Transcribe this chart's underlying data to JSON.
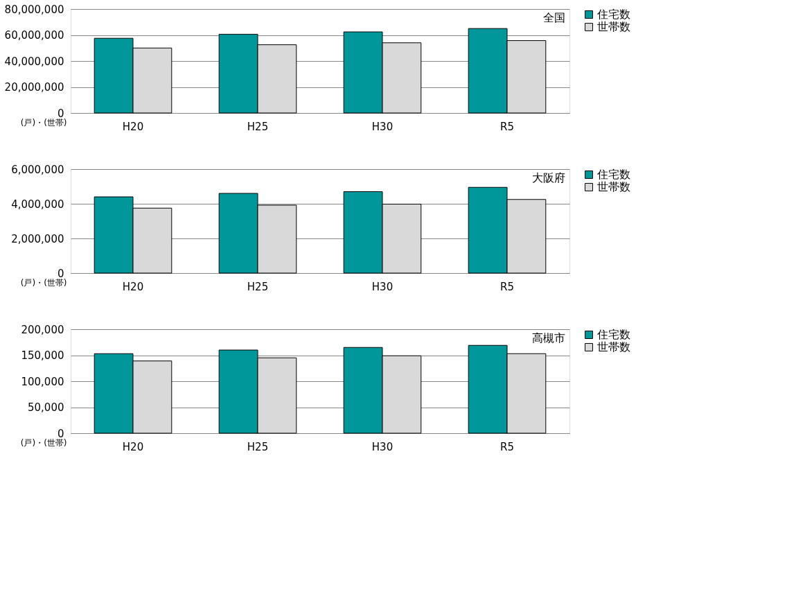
{
  "chart_data": [
    {
      "type": "bar",
      "title": "全国",
      "ylabel": "(戸)・(世帯)",
      "categories": [
        "H20",
        "H25",
        "H30",
        "R5"
      ],
      "series": [
        {
          "name": "住宅数",
          "color": "#00979b",
          "values": [
            57500000,
            60600000,
            62400000,
            65000000
          ]
        },
        {
          "name": "世帯数",
          "color": "#d9d9d9",
          "values": [
            50000000,
            52500000,
            54000000,
            55700000
          ]
        }
      ],
      "ylim": [
        0,
        80000000
      ],
      "yticks": [
        0,
        {
          "value": 20000000,
          "label": "20,000,000"
        },
        {
          "value": 40000000,
          "label": "40,000,000"
        },
        {
          "value": 60000000,
          "label": "60,000,000"
        },
        {
          "value": 80000000,
          "label": "80,000,000"
        }
      ],
      "grid": "y",
      "legend": "right"
    },
    {
      "type": "bar",
      "title": "大阪府",
      "ylabel": "(戸)・(世帯)",
      "categories": [
        "H20",
        "H25",
        "H30",
        "R5"
      ],
      "series": [
        {
          "name": "住宅数",
          "color": "#00979b",
          "values": [
            4400000,
            4600000,
            4700000,
            4950000
          ]
        },
        {
          "name": "世帯数",
          "color": "#d9d9d9",
          "values": [
            3750000,
            3920000,
            3980000,
            4250000
          ]
        }
      ],
      "ylim": [
        0,
        6000000
      ],
      "yticks": [
        0,
        {
          "value": 2000000,
          "label": "2,000,000"
        },
        {
          "value": 4000000,
          "label": "4,000,000"
        },
        {
          "value": 6000000,
          "label": "6,000,000"
        }
      ],
      "grid": "y",
      "legend": "right"
    },
    {
      "type": "bar",
      "title": "高槻市",
      "ylabel": "(戸)・(世帯)",
      "categories": [
        "H20",
        "H25",
        "H30",
        "R5"
      ],
      "series": [
        {
          "name": "住宅数",
          "color": "#00979b",
          "values": [
            153000,
            160000,
            165000,
            169000
          ]
        },
        {
          "name": "世帯数",
          "color": "#d9d9d9",
          "values": [
            139000,
            145000,
            149000,
            153000
          ]
        }
      ],
      "ylim": [
        0,
        200000
      ],
      "yticks": [
        0,
        {
          "value": 50000,
          "label": "50,000"
        },
        {
          "value": 100000,
          "label": "100,000"
        },
        {
          "value": 150000,
          "label": "150,000"
        },
        {
          "value": 200000,
          "label": "200,000"
        }
      ],
      "grid": "y",
      "legend": "right"
    }
  ]
}
